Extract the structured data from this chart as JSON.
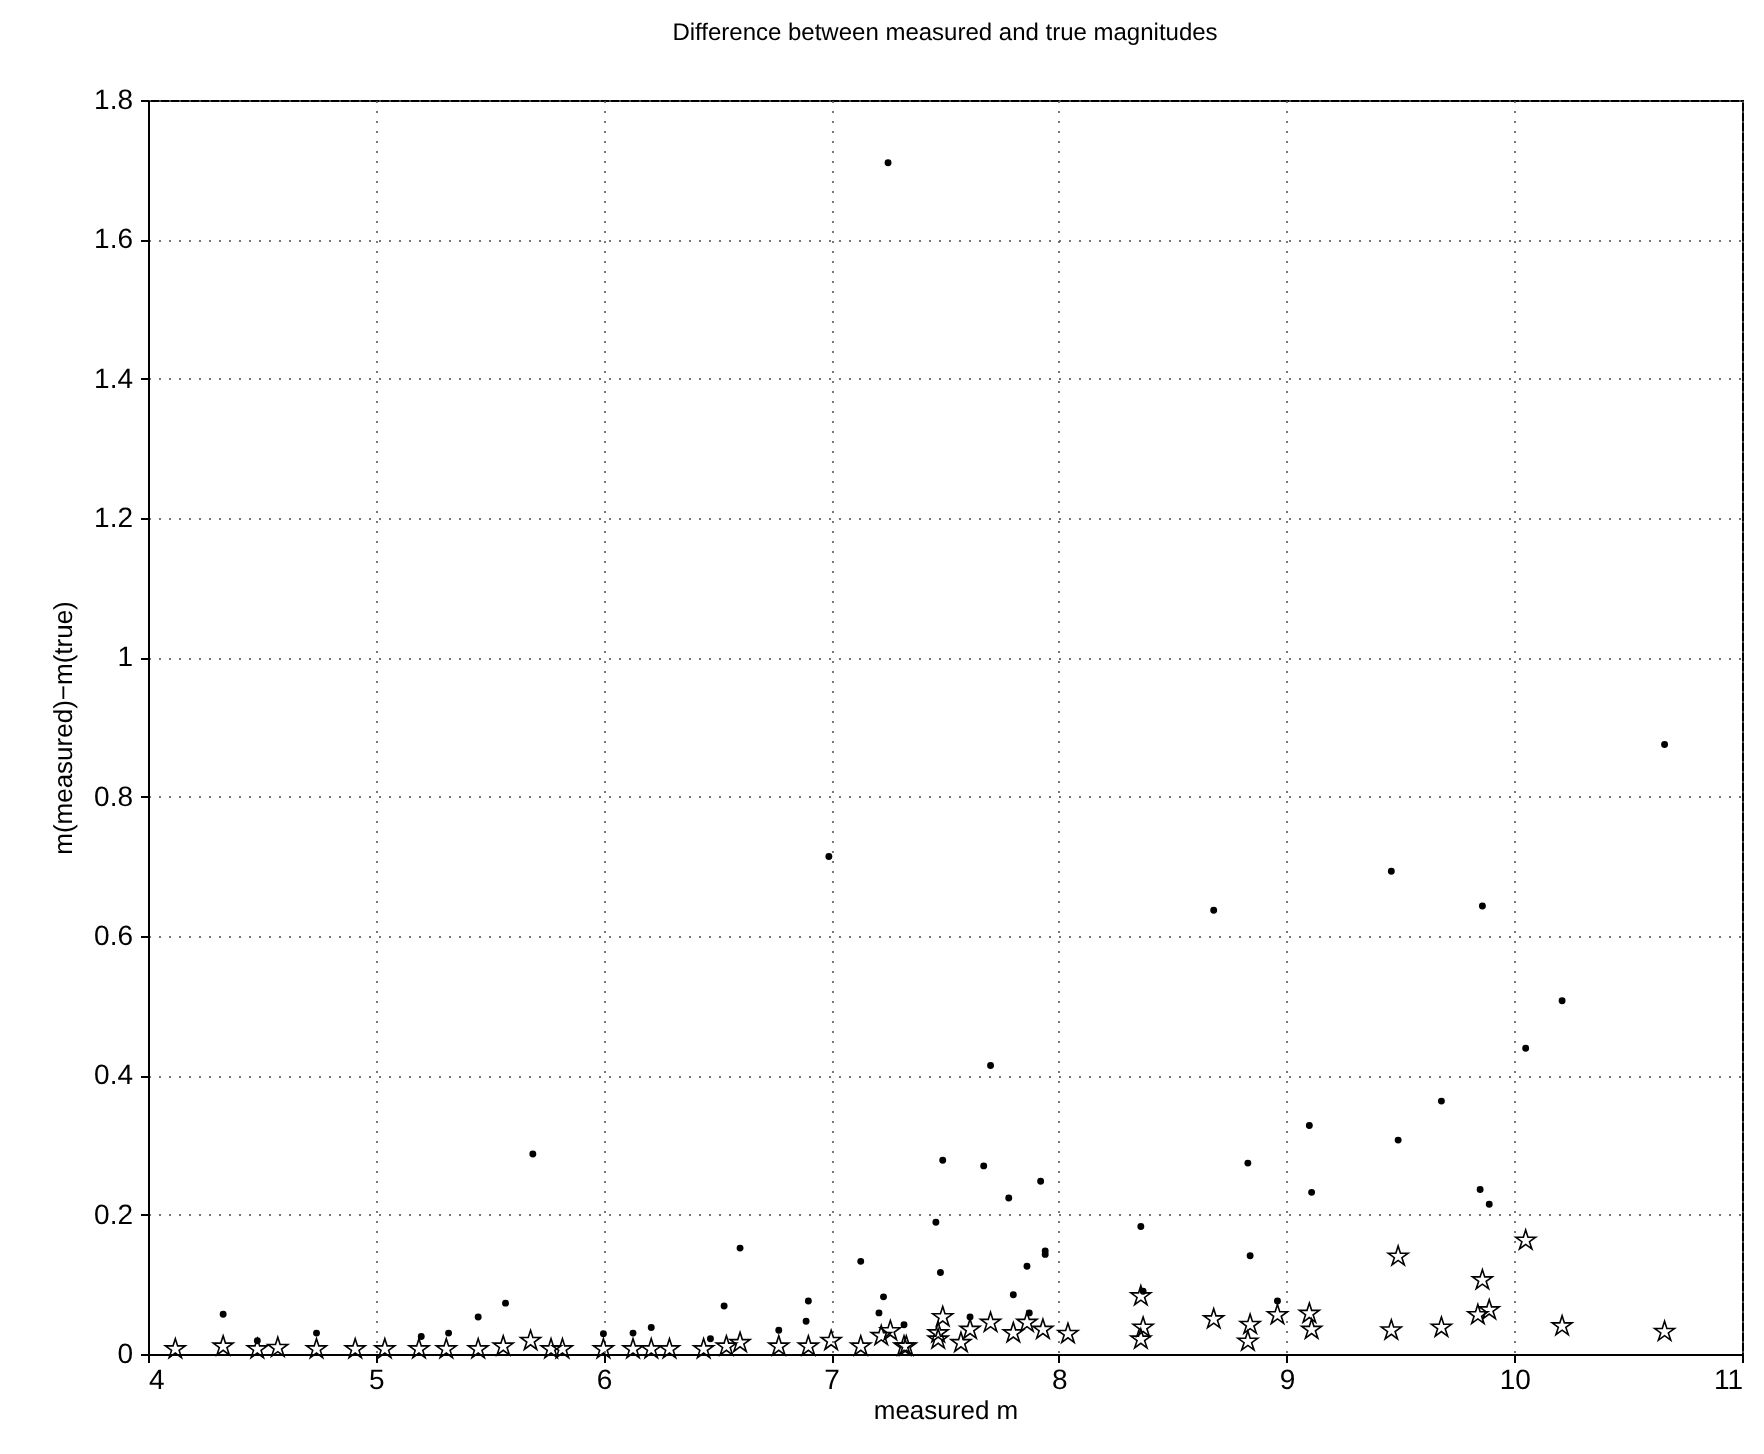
{
  "chart_data": {
    "type": "scatter",
    "title": "Difference between measured and true magnitudes",
    "xlabel": "measured m",
    "ylabel": "m(measured)−m(true)",
    "xlim": [
      4,
      11
    ],
    "xticks": [
      4,
      5,
      6,
      7,
      8,
      9,
      10,
      11
    ],
    "ylim": [
      0,
      1.8
    ],
    "yticks": [
      0,
      0.2,
      0.4,
      0.6,
      0.8,
      1,
      1.2,
      1.4,
      1.6,
      1.8
    ],
    "grid": true,
    "series": [
      {
        "color": "#000000",
        "marker": "circle",
        "x": [
          7.25,
          6.99,
          10.66,
          9.46,
          9.86,
          8.68,
          10.21,
          10.05,
          7.7,
          9.68,
          9.1,
          9.49,
          5.69,
          7.49,
          7.67,
          8.83,
          7.92,
          9.85,
          9.11,
          7.78,
          9.89,
          7.46,
          8.36,
          6.6,
          7.94,
          7.94,
          8.84,
          7.13,
          7.86,
          7.48,
          7.8,
          7.23,
          6.9,
          6.53,
          5.57,
          8.96,
          8.37,
          4.33,
          5.45,
          7.21,
          7.61,
          7.87,
          6.89,
          7.32,
          6.21,
          6.77,
          4.74,
          5.32,
          6.13,
          6,
          5.2,
          6.47,
          4.48
        ],
        "values": [
          1.71,
          0.714,
          0.875,
          0.693,
          0.643,
          0.637,
          0.507,
          0.439,
          0.414,
          0.363,
          0.328,
          0.307,
          0.287,
          0.278,
          0.27,
          0.274,
          0.248,
          0.236,
          0.232,
          0.224,
          0.215,
          0.189,
          0.183,
          0.152,
          0.148,
          0.143,
          0.141,
          0.133,
          0.126,
          0.117,
          0.085,
          0.082,
          0.076,
          0.069,
          0.073,
          0.076,
          0.09,
          0.057,
          0.053,
          0.059,
          0.053,
          0.059,
          0.047,
          0.042,
          0.038,
          0.034,
          0.03,
          0.03,
          0.03,
          0.029,
          0.025,
          0.022,
          0.019
        ]
      },
      {
        "color": "#000000",
        "marker": "star",
        "x": [
          4.12,
          4.33,
          4.48,
          4.57,
          4.74,
          4.91,
          5.04,
          5.19,
          5.31,
          5.45,
          5.56,
          5.68,
          5.77,
          5.82,
          6,
          6.13,
          6.21,
          6.29,
          6.44,
          6.54,
          6.6,
          6.77,
          6.9,
          7,
          7.13,
          7.22,
          7.26,
          7.32,
          7.33,
          7.47,
          7.47,
          7.49,
          7.57,
          7.61,
          7.7,
          7.8,
          7.86,
          7.93,
          8.04,
          8.36,
          8.37,
          8.36,
          8.68,
          8.84,
          8.83,
          8.96,
          9.1,
          9.11,
          9.46,
          9.68,
          9.49,
          9.86,
          9.84,
          9.89,
          10.05,
          10.21,
          10.66
        ],
        "values": [
          0.007,
          0.011,
          0.007,
          0.009,
          0.007,
          0.007,
          0.007,
          0.007,
          0.007,
          0.007,
          0.011,
          0.019,
          0.007,
          0.007,
          0.007,
          0.007,
          0.007,
          0.007,
          0.007,
          0.011,
          0.016,
          0.011,
          0.011,
          0.019,
          0.011,
          0.026,
          0.033,
          0.011,
          0.011,
          0.021,
          0.03,
          0.053,
          0.016,
          0.035,
          0.045,
          0.03,
          0.045,
          0.035,
          0.029,
          0.083,
          0.038,
          0.021,
          0.05,
          0.042,
          0.018,
          0.056,
          0.058,
          0.035,
          0.034,
          0.038,
          0.14,
          0.106,
          0.056,
          0.063,
          0.163,
          0.04,
          0.032
        ]
      }
    ]
  }
}
